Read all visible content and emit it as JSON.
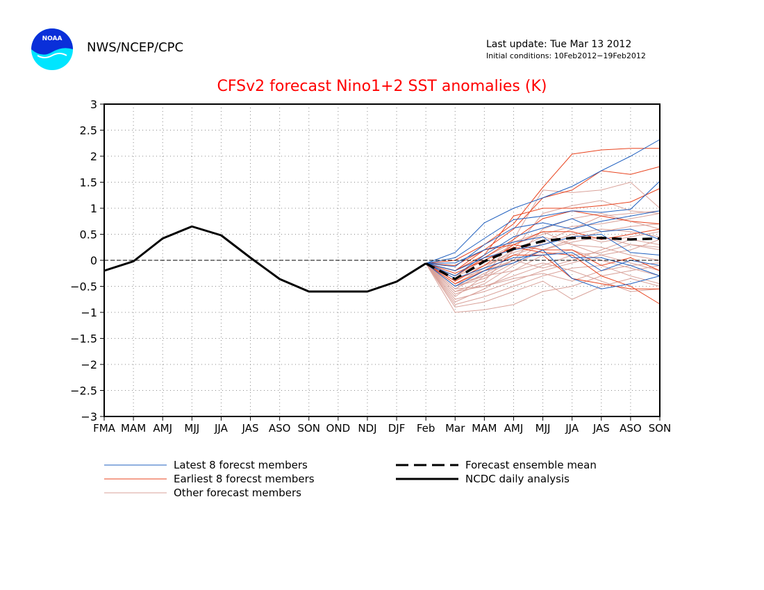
{
  "header": {
    "logo_text": "NOAA",
    "agency": "NWS/NCEP/CPC",
    "last_update": "Last update: Tue Mar 13 2012",
    "initial_conditions": "Initial conditions: 10Feb2012−19Feb2012"
  },
  "colors": {
    "latest": "#1f5fbf",
    "earliest": "#e8431e",
    "other": "#d9a29a",
    "title": "#ff0000"
  },
  "chart_data": {
    "type": "line",
    "title": "CFSv2 forecast Nino1+2 SST anomalies (K)",
    "categories": [
      "FMA",
      "MAM",
      "AMJ",
      "MJJ",
      "JJA",
      "JAS",
      "ASO",
      "SON",
      "OND",
      "NDJ",
      "DJF",
      "Feb",
      "Mar",
      "MAM",
      "AMJ",
      "MJJ",
      "JJA",
      "JAS",
      "ASO",
      "SON"
    ],
    "ylim": [
      -3,
      3
    ],
    "yticks": [
      "3",
      "2.5",
      "2",
      "1.5",
      "1",
      "0.5",
      "0",
      "−0.5",
      "−1",
      "−1.5",
      "−2",
      "−2.5",
      "−3"
    ],
    "grid": true,
    "legend_placement": "bottom",
    "legend": {
      "latest": "Latest 8 forecst members",
      "earliest": "Earliest 8 forecst members",
      "other": "Other forecast members",
      "mean": "Forecast ensemble mean",
      "analysis": "NCDC daily analysis"
    },
    "analysis": [
      -0.2,
      -0.02,
      0.42,
      0.65,
      0.48,
      0.05,
      -0.36,
      -0.6,
      -0.6,
      -0.6,
      -0.41,
      -0.06
    ],
    "ensemble_mean": [
      -0.06,
      -0.36,
      -0.02,
      0.22,
      0.37,
      0.43,
      0.43,
      0.4,
      0.42
    ],
    "latest_members": [
      [
        -0.06,
        0.15,
        0.72,
        1.0,
        1.2,
        1.42,
        1.72,
        2.0,
        2.32
      ],
      [
        -0.06,
        0.05,
        0.42,
        0.78,
        0.85,
        0.95,
        0.92,
        0.98,
        1.52
      ],
      [
        -0.06,
        -0.12,
        0.3,
        0.62,
        0.72,
        0.6,
        0.75,
        0.85,
        0.95
      ],
      [
        -0.06,
        -0.3,
        0.1,
        0.45,
        0.62,
        0.8,
        0.55,
        0.6,
        0.4
      ],
      [
        -0.06,
        -0.2,
        0.05,
        0.2,
        0.3,
        0.45,
        0.5,
        0.15,
        0.1
      ],
      [
        -0.06,
        -0.35,
        -0.15,
        0.05,
        0.1,
        0.15,
        -0.2,
        0.0,
        -0.1
      ],
      [
        -0.06,
        -0.5,
        -0.2,
        -0.05,
        0.2,
        -0.35,
        -0.55,
        -0.45,
        -0.3
      ],
      [
        -0.06,
        -0.05,
        0.2,
        0.35,
        0.45,
        0.05,
        0.05,
        -0.1,
        -0.3
      ]
    ],
    "earliest_members": [
      [
        -0.06,
        0.0,
        0.3,
        0.7,
        1.4,
        2.04,
        2.12,
        2.15,
        2.15
      ],
      [
        -0.06,
        -0.1,
        0.2,
        0.6,
        1.2,
        1.35,
        1.72,
        1.65,
        1.8
      ],
      [
        -0.06,
        -0.2,
        0.1,
        0.85,
        1.0,
        1.0,
        1.05,
        1.12,
        1.38
      ],
      [
        -0.06,
        -0.3,
        0.05,
        0.4,
        0.8,
        0.95,
        0.85,
        0.75,
        0.7
      ],
      [
        -0.06,
        -0.4,
        -0.1,
        0.3,
        0.55,
        0.55,
        0.4,
        0.5,
        0.6
      ],
      [
        -0.06,
        -0.2,
        0.2,
        0.3,
        0.2,
        0.2,
        -0.1,
        0.05,
        -0.2
      ],
      [
        -0.06,
        -0.45,
        -0.2,
        0.1,
        0.1,
        -0.35,
        -0.45,
        -0.55,
        -0.55
      ],
      [
        -0.06,
        -0.25,
        0.0,
        0.25,
        0.15,
        0.1,
        -0.3,
        -0.5,
        -0.84
      ]
    ],
    "other_members": [
      [
        -0.06,
        -0.5,
        -0.3,
        0.4,
        1.35,
        1.3,
        1.35,
        1.5,
        1.0
      ],
      [
        -0.06,
        -0.6,
        -0.4,
        0.2,
        0.9,
        1.05,
        1.15,
        0.95,
        0.9
      ],
      [
        -0.06,
        -0.7,
        -0.3,
        0.0,
        0.6,
        0.8,
        0.9,
        0.75,
        0.6
      ],
      [
        -0.06,
        -1.0,
        -0.95,
        -0.85,
        -0.6,
        -0.5,
        -0.3,
        -0.2,
        -0.1
      ],
      [
        -0.06,
        -0.9,
        -0.8,
        -0.6,
        -0.4,
        -0.75,
        -0.5,
        -0.35,
        -0.5
      ],
      [
        -0.06,
        -0.4,
        -0.1,
        0.1,
        0.3,
        0.5,
        0.6,
        0.55,
        0.45
      ],
      [
        -0.06,
        -0.55,
        -0.5,
        -0.3,
        -0.1,
        0.1,
        0.15,
        0.3,
        0.2
      ],
      [
        -0.06,
        -0.3,
        0.0,
        0.3,
        0.5,
        0.65,
        0.7,
        0.8,
        0.9
      ],
      [
        -0.06,
        -0.8,
        -0.55,
        -0.2,
        0.1,
        0.2,
        0.0,
        -0.15,
        -0.3
      ],
      [
        -0.06,
        -0.45,
        -0.3,
        -0.2,
        -0.05,
        -0.2,
        -0.4,
        -0.6,
        -0.55
      ],
      [
        -0.06,
        -0.65,
        -0.45,
        -0.1,
        0.2,
        0.4,
        0.55,
        0.65,
        0.7
      ],
      [
        -0.06,
        -0.2,
        0.05,
        0.35,
        0.55,
        0.3,
        0.25,
        0.1,
        0.0
      ],
      [
        -0.06,
        -0.75,
        -0.6,
        -0.4,
        -0.2,
        -0.05,
        0.1,
        -0.05,
        -0.2
      ],
      [
        -0.06,
        -0.35,
        -0.2,
        0.0,
        0.2,
        0.35,
        0.45,
        0.3,
        0.25
      ],
      [
        -0.06,
        -0.5,
        -0.35,
        -0.05,
        0.35,
        0.6,
        0.85,
        0.9,
        0.95
      ],
      [
        -0.06,
        -0.6,
        -0.5,
        -0.35,
        -0.25,
        -0.4,
        -0.2,
        -0.1,
        -0.05
      ],
      [
        -0.06,
        -0.45,
        -0.15,
        0.2,
        0.45,
        0.3,
        0.1,
        0.2,
        0.4
      ],
      [
        -0.06,
        -0.85,
        -0.7,
        -0.5,
        -0.3,
        -0.15,
        -0.1,
        -0.3,
        -0.45
      ],
      [
        -0.06,
        -0.3,
        -0.1,
        0.15,
        0.3,
        0.5,
        0.35,
        0.45,
        0.55
      ],
      [
        -0.06,
        -0.55,
        -0.25,
        0.0,
        -0.15,
        0.0,
        0.2,
        0.4,
        0.3
      ]
    ]
  }
}
